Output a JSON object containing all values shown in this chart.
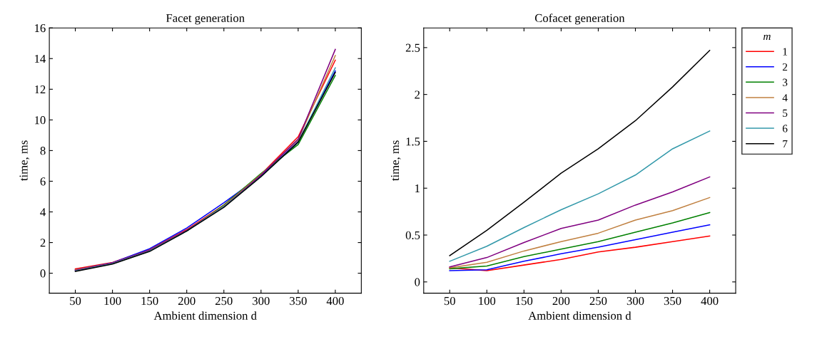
{
  "chart_data": [
    {
      "type": "line",
      "title": "Facet generation",
      "xlabel": "Ambient dimension d",
      "ylabel": "time, ms",
      "x": [
        50,
        100,
        150,
        200,
        250,
        300,
        350,
        400
      ],
      "xlim": [
        15,
        435
      ],
      "ylim": [
        -1.3,
        16
      ],
      "xticks": [
        50,
        100,
        150,
        200,
        250,
        300,
        350,
        400
      ],
      "yticks": [
        0,
        2,
        4,
        6,
        8,
        10,
        12,
        14,
        16
      ],
      "grid": false,
      "legend": false,
      "marker": "none",
      "line_style": "solid",
      "series": [
        {
          "color": "#ff0000",
          "values": [
            0.28,
            0.7,
            1.55,
            2.85,
            4.45,
            6.45,
            8.9,
            13.9
          ]
        },
        {
          "color": "#0000ff",
          "values": [
            0.22,
            0.68,
            1.6,
            2.95,
            4.6,
            6.35,
            8.6,
            13.2
          ]
        },
        {
          "color": "#008000",
          "values": [
            null,
            null,
            null,
            2.75,
            4.45,
            6.5,
            8.4,
            12.9
          ]
        },
        {
          "color": "#c08040",
          "values": [
            0.22,
            0.66,
            1.52,
            2.8,
            4.4,
            6.45,
            8.7,
            14.2
          ]
        },
        {
          "color": "#800080",
          "values": [
            0.18,
            0.65,
            1.5,
            2.8,
            4.35,
            6.4,
            8.75,
            14.6
          ]
        },
        {
          "color": "#3399aa",
          "values": [
            0.15,
            0.62,
            1.45,
            2.75,
            4.35,
            6.3,
            8.55,
            13.4
          ]
        },
        {
          "color": "#000000",
          "values": [
            0.12,
            0.6,
            1.42,
            2.75,
            4.3,
            6.3,
            8.55,
            13.1
          ]
        }
      ]
    },
    {
      "type": "line",
      "title": "Cofacet generation",
      "xlabel": "Ambient dimension d",
      "ylabel": "time, ms",
      "legend_title": "m",
      "x": [
        50,
        100,
        150,
        200,
        250,
        300,
        350,
        400
      ],
      "xlim": [
        15,
        435
      ],
      "ylim": [
        -0.12,
        2.71
      ],
      "xticks": [
        50,
        100,
        150,
        200,
        250,
        300,
        350,
        400
      ],
      "yticks": [
        0,
        0.5,
        1,
        1.5,
        2,
        2.5
      ],
      "grid": false,
      "legend": "right",
      "marker": "none",
      "line_style": "solid",
      "series": [
        {
          "name": "1",
          "color": "#ff0000",
          "values": [
            0.15,
            0.12,
            0.18,
            0.24,
            0.32,
            0.37,
            0.43,
            0.49
          ]
        },
        {
          "name": "2",
          "color": "#0000ff",
          "values": [
            0.12,
            0.13,
            0.22,
            0.3,
            0.37,
            0.45,
            0.53,
            0.61
          ]
        },
        {
          "name": "3",
          "color": "#008000",
          "values": [
            0.14,
            0.17,
            0.27,
            0.35,
            0.43,
            0.53,
            0.63,
            0.74
          ]
        },
        {
          "name": "4",
          "color": "#c08040",
          "values": [
            0.15,
            0.21,
            0.33,
            0.43,
            0.52,
            0.66,
            0.76,
            0.9
          ]
        },
        {
          "name": "5",
          "color": "#800080",
          "values": [
            0.16,
            0.26,
            0.42,
            0.57,
            0.66,
            0.82,
            0.96,
            1.12
          ]
        },
        {
          "name": "6",
          "color": "#3399aa",
          "values": [
            0.22,
            0.38,
            0.58,
            0.77,
            0.94,
            1.14,
            1.42,
            1.61
          ]
        },
        {
          "name": "7",
          "color": "#000000",
          "values": [
            0.28,
            0.55,
            0.85,
            1.16,
            1.42,
            1.72,
            2.08,
            2.47
          ]
        }
      ]
    }
  ]
}
